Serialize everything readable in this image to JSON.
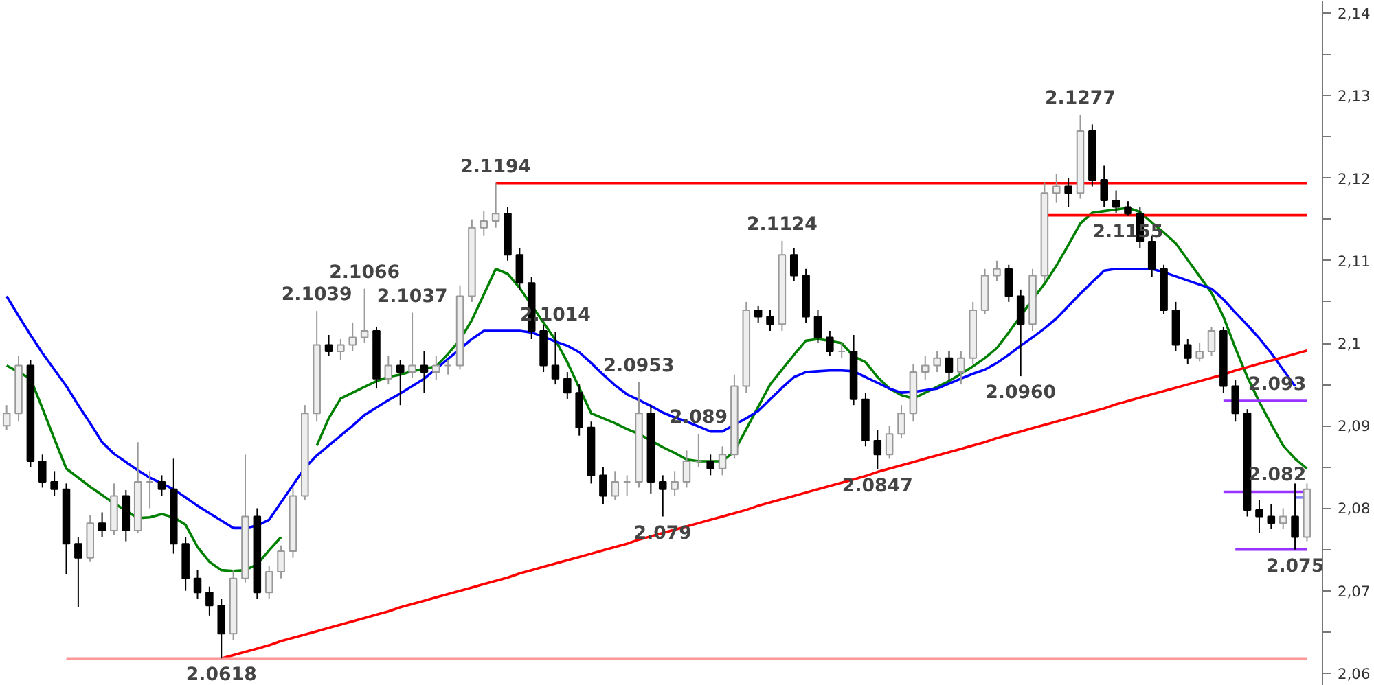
{
  "chart_data": {
    "type": "candlestick",
    "tick_labels": "y",
    "ylim": [
      2.0585,
      2.1415
    ],
    "yticks": [
      {
        "value": 2.06,
        "label": "2,06"
      },
      {
        "value": 2.065,
        "label": null
      },
      {
        "value": 2.07,
        "label": "2,07"
      },
      {
        "value": 2.075,
        "label": null
      },
      {
        "value": 2.08,
        "label": "2,08"
      },
      {
        "value": 2.085,
        "label": null
      },
      {
        "value": 2.09,
        "label": "2,09"
      },
      {
        "value": 2.095,
        "label": null
      },
      {
        "value": 2.1,
        "label": "2,1"
      },
      {
        "value": 2.105,
        "label": null
      },
      {
        "value": 2.11,
        "label": "2,11"
      },
      {
        "value": 2.115,
        "label": null
      },
      {
        "value": 2.12,
        "label": "2,12"
      },
      {
        "value": 2.125,
        "label": null
      },
      {
        "value": 2.13,
        "label": "2,13"
      },
      {
        "value": 2.135,
        "label": null
      },
      {
        "value": 2.14,
        "label": "2,14"
      }
    ],
    "categories": [
      null,
      null,
      null,
      null,
      null,
      null,
      null,
      null,
      null,
      null,
      null,
      null,
      null,
      null,
      null,
      null,
      null,
      null,
      null,
      null,
      null,
      null,
      null,
      null,
      null,
      null,
      null,
      null,
      null,
      null,
      null,
      null,
      null,
      null,
      null,
      null,
      null,
      null,
      null,
      null,
      null,
      null,
      null,
      null,
      null,
      null,
      null,
      null,
      null,
      null,
      null,
      null,
      null,
      null,
      null,
      null,
      null,
      null,
      null,
      null,
      null,
      null,
      null,
      null,
      null,
      null,
      null,
      null,
      null,
      null,
      null,
      null,
      null,
      null,
      null,
      null,
      null,
      null,
      null,
      null,
      null,
      null,
      null,
      null,
      null,
      null,
      null,
      null,
      null,
      null,
      null,
      null,
      null,
      null,
      null,
      null,
      null,
      null,
      null,
      null,
      null,
      null,
      null,
      null,
      null,
      null,
      null,
      null,
      null,
      null
    ],
    "ohlc": [
      [
        2.09,
        2.0925,
        2.0895,
        2.0915
      ],
      [
        2.0915,
        2.0985,
        2.0905,
        2.0973
      ],
      [
        2.0973,
        2.098,
        2.085,
        2.0857
      ],
      [
        2.0857,
        2.0865,
        2.0825,
        2.0832
      ],
      [
        2.0832,
        2.0845,
        2.0815,
        2.0823
      ],
      [
        2.0823,
        2.083,
        2.072,
        2.0757
      ],
      [
        2.0757,
        2.0765,
        2.068,
        2.074
      ],
      [
        2.074,
        2.0792,
        2.0735,
        2.0782
      ],
      [
        2.0782,
        2.0795,
        2.0765,
        2.0773
      ],
      [
        2.0773,
        2.083,
        2.0768,
        2.0815
      ],
      [
        2.0815,
        2.0822,
        2.076,
        2.0773
      ],
      [
        2.0773,
        2.088,
        2.077,
        2.0832
      ],
      [
        2.0832,
        2.0845,
        2.08,
        2.0832
      ],
      [
        2.0832,
        2.084,
        2.0815,
        2.0823
      ],
      [
        2.0823,
        2.086,
        2.0745,
        2.0757
      ],
      [
        2.0757,
        2.0765,
        2.07,
        2.0715
      ],
      [
        2.0715,
        2.0725,
        2.069,
        2.0698
      ],
      [
        2.0698,
        2.0705,
        2.067,
        2.0682
      ],
      [
        2.0682,
        2.069,
        2.0618,
        2.0648
      ],
      [
        2.0648,
        2.0725,
        2.064,
        2.0715
      ],
      [
        2.0715,
        2.0865,
        2.071,
        2.079
      ],
      [
        2.079,
        2.08,
        2.069,
        2.0698
      ],
      [
        2.0698,
        2.073,
        2.069,
        2.0723
      ],
      [
        2.0723,
        2.0755,
        2.0715,
        2.0748
      ],
      [
        2.0748,
        2.0825,
        2.074,
        2.0815
      ],
      [
        2.0815,
        2.0925,
        2.081,
        2.0915
      ],
      [
        2.0915,
        2.1039,
        2.0905,
        2.0998
      ],
      [
        2.0998,
        2.101,
        2.0985,
        2.099
      ],
      [
        2.099,
        2.1005,
        2.098,
        2.0998
      ],
      [
        2.0998,
        2.1025,
        2.099,
        2.1007
      ],
      [
        2.1007,
        2.1066,
        2.1,
        2.1015
      ],
      [
        2.1015,
        2.102,
        2.0945,
        2.0957
      ],
      [
        2.0957,
        2.0985,
        2.095,
        2.0973
      ],
      [
        2.0973,
        2.098,
        2.0925,
        2.0965
      ],
      [
        2.0965,
        2.1037,
        2.0958,
        2.0973
      ],
      [
        2.0973,
        2.099,
        2.094,
        2.0965
      ],
      [
        2.0965,
        2.0985,
        2.0955,
        2.0973
      ],
      [
        2.0973,
        2.098,
        2.0962,
        2.0973
      ],
      [
        2.0973,
        2.107,
        2.0968,
        2.1057
      ],
      [
        2.1057,
        2.115,
        2.105,
        2.114
      ],
      [
        2.114,
        2.116,
        2.113,
        2.1148
      ],
      [
        2.1148,
        2.1194,
        2.114,
        2.1157
      ],
      [
        2.1157,
        2.1165,
        2.11,
        2.1107
      ],
      [
        2.1107,
        2.1115,
        2.1065,
        2.1073
      ],
      [
        2.1073,
        2.108,
        2.1005,
        2.1015
      ],
      [
        2.1015,
        2.1022,
        2.0965,
        2.0973
      ],
      [
        2.0973,
        2.1014,
        2.095,
        2.0957
      ],
      [
        2.0957,
        2.0965,
        2.0932,
        2.094
      ],
      [
        2.094,
        2.095,
        2.0888,
        2.0898
      ],
      [
        2.0898,
        2.0905,
        2.083,
        2.084
      ],
      [
        2.084,
        2.085,
        2.0805,
        2.0815
      ],
      [
        2.0815,
        2.0845,
        2.081,
        2.0832
      ],
      [
        2.0832,
        2.084,
        2.0815,
        2.0832
      ],
      [
        2.0832,
        2.0953,
        2.0825,
        2.0915
      ],
      [
        2.0915,
        2.0925,
        2.0818,
        2.0832
      ],
      [
        2.0832,
        2.084,
        2.079,
        2.0823
      ],
      [
        2.0823,
        2.0845,
        2.0815,
        2.0832
      ],
      [
        2.0832,
        2.087,
        2.0825,
        2.0857
      ],
      [
        2.0857,
        2.089,
        2.085,
        2.0857
      ],
      [
        2.0857,
        2.0865,
        2.084,
        2.0848
      ],
      [
        2.0848,
        2.0875,
        2.084,
        2.0865
      ],
      [
        2.0865,
        2.0962,
        2.086,
        2.0948
      ],
      [
        2.0948,
        2.105,
        2.094,
        2.104
      ],
      [
        2.104,
        2.1045,
        2.1025,
        2.1032
      ],
      [
        2.1032,
        2.104,
        2.1015,
        2.1023
      ],
      [
        2.1023,
        2.1124,
        2.1015,
        2.1107
      ],
      [
        2.1107,
        2.1115,
        2.1075,
        2.1082
      ],
      [
        2.1082,
        2.109,
        2.1025,
        2.1032
      ],
      [
        2.1032,
        2.104,
        2.1,
        2.1007
      ],
      [
        2.1007,
        2.1015,
        2.0985,
        2.099
      ],
      [
        2.099,
        2.1,
        2.0982,
        2.099
      ],
      [
        2.099,
        2.101,
        2.0925,
        2.0932
      ],
      [
        2.0932,
        2.094,
        2.0875,
        2.0882
      ],
      [
        2.0882,
        2.0895,
        2.0847,
        2.0865
      ],
      [
        2.0865,
        2.09,
        2.086,
        2.089
      ],
      [
        2.089,
        2.0925,
        2.0885,
        2.0915
      ],
      [
        2.0915,
        2.0975,
        2.0905,
        2.0965
      ],
      [
        2.0965,
        2.0985,
        2.0955,
        2.0973
      ],
      [
        2.0973,
        2.099,
        2.0965,
        2.0982
      ],
      [
        2.0982,
        2.099,
        2.0955,
        2.0965
      ],
      [
        2.0965,
        2.099,
        2.095,
        2.0982
      ],
      [
        2.0982,
        2.105,
        2.0975,
        2.104
      ],
      [
        2.104,
        2.109,
        2.1035,
        2.1082
      ],
      [
        2.1082,
        2.11,
        2.1075,
        2.109
      ],
      [
        2.109,
        2.1095,
        2.105,
        2.1057
      ],
      [
        2.1057,
        2.1065,
        2.096,
        2.1023
      ],
      [
        2.1023,
        2.109,
        2.1015,
        2.1082
      ],
      [
        2.1082,
        2.1195,
        2.1075,
        2.1182
      ],
      [
        2.1182,
        2.1205,
        2.117,
        2.119
      ],
      [
        2.119,
        2.12,
        2.1165,
        2.1182
      ],
      [
        2.1182,
        2.1277,
        2.1175,
        2.1257
      ],
      [
        2.1257,
        2.1265,
        2.119,
        2.1198
      ],
      [
        2.1198,
        2.1215,
        2.1165,
        2.1173
      ],
      [
        2.1173,
        2.1185,
        2.1158,
        2.1165
      ],
      [
        2.1165,
        2.1172,
        2.1155,
        2.1157
      ],
      [
        2.1157,
        2.1165,
        2.1115,
        2.1123
      ],
      [
        2.1123,
        2.113,
        2.108,
        2.109
      ],
      [
        2.109,
        2.1095,
        2.1035,
        2.104
      ],
      [
        2.104,
        2.105,
        2.099,
        2.0998
      ],
      [
        2.0998,
        2.1005,
        2.0975,
        2.0982
      ],
      [
        2.0982,
        2.1,
        2.0978,
        2.099
      ],
      [
        2.099,
        2.102,
        2.0985,
        2.1015
      ],
      [
        2.1015,
        2.102,
        2.094,
        2.0948
      ],
      [
        2.0948,
        2.0955,
        2.0905,
        2.0915
      ],
      [
        2.0915,
        2.092,
        2.079,
        2.0798
      ],
      [
        2.0798,
        2.081,
        2.077,
        2.079
      ],
      [
        2.079,
        2.0805,
        2.0775,
        2.0782
      ],
      [
        2.0782,
        2.08,
        2.0775,
        2.079
      ],
      [
        2.079,
        2.083,
        2.075,
        2.0765
      ],
      [
        2.0765,
        2.083,
        2.076,
        2.0823
      ]
    ],
    "series": [
      {
        "type": "line",
        "color": "#008000",
        "values": [
          2.0973,
          2.0965,
          2.0957,
          2.0921,
          2.0884,
          2.0848,
          2.0837,
          2.0826,
          2.0816,
          2.0806,
          2.0797,
          2.0788,
          2.0789,
          2.0793,
          2.0789,
          2.078,
          2.0753,
          2.0735,
          2.0725,
          2.0724,
          2.0725,
          2.0732,
          2.0749,
          2.0765,
          null,
          null,
          2.0876,
          2.0909,
          2.0933,
          2.094,
          2.0947,
          2.0954,
          2.0959,
          2.0962,
          2.0966,
          2.0969,
          2.0972,
          2.0987,
          2.1004,
          2.1028,
          2.1059,
          2.109,
          2.1084,
          2.1067,
          2.1046,
          2.1025,
          2.1004,
          2.0977,
          2.0946,
          2.0915,
          2.0909,
          2.0903,
          2.0896,
          2.089,
          2.0882,
          2.0874,
          2.0867,
          2.0859,
          2.0857,
          2.0857,
          2.0857,
          2.0869,
          2.0896,
          2.0923,
          2.095,
          2.0968,
          2.0986,
          2.1003,
          2.1005,
          2.1003,
          2.1,
          2.0984,
          2.0977,
          2.0959,
          2.0945,
          2.0937,
          2.0933,
          2.094,
          2.0947,
          2.0954,
          2.0963,
          2.0972,
          2.0982,
          2.0994,
          2.1013,
          2.1033,
          2.1053,
          2.1072,
          2.1094,
          2.1119,
          2.1145,
          2.1158,
          2.116,
          2.1162,
          2.1164,
          2.1159,
          2.1146,
          2.1134,
          2.1121,
          2.1101,
          2.1081,
          2.1061,
          2.1032,
          2.0994,
          2.0959,
          2.0929,
          2.0902,
          2.0876,
          2.086,
          2.0848
        ]
      },
      {
        "type": "line",
        "color": "#0000ff",
        "values": [
          2.1057,
          2.1033,
          2.101,
          2.0988,
          2.0968,
          2.0948,
          2.0925,
          2.0903,
          2.088,
          2.0866,
          2.0856,
          2.0846,
          2.0837,
          2.083,
          2.0823,
          2.0813,
          2.0803,
          2.0794,
          2.0785,
          2.0776,
          2.0776,
          2.0779,
          2.0786,
          2.0807,
          2.0828,
          2.0849,
          2.0864,
          2.0876,
          2.0888,
          2.09,
          2.0913,
          2.0922,
          2.0931,
          2.0939,
          2.0948,
          2.0957,
          2.0969,
          2.0981,
          2.0993,
          2.1005,
          2.1015,
          2.1015,
          2.1015,
          2.1015,
          2.1013,
          2.1008,
          2.1002,
          2.0997,
          2.0989,
          2.0976,
          2.0962,
          2.0949,
          2.0938,
          2.0931,
          2.0924,
          2.0916,
          2.091,
          2.0905,
          2.0899,
          2.0893,
          2.0893,
          2.0901,
          2.0909,
          2.0918,
          2.0932,
          2.0946,
          2.0959,
          2.0965,
          2.0966,
          2.0967,
          2.0967,
          2.0966,
          2.0959,
          2.0952,
          2.0945,
          2.094,
          2.0941,
          2.0943,
          2.0945,
          2.0951,
          2.0957,
          2.0963,
          2.0968,
          2.0976,
          2.0986,
          2.0997,
          2.1007,
          2.1018,
          2.103,
          2.1045,
          2.106,
          2.1074,
          2.1088,
          2.109,
          2.109,
          2.109,
          2.109,
          2.1086,
          2.1081,
          2.1076,
          2.1071,
          2.1066,
          2.1053,
          2.1037,
          2.1022,
          2.1006,
          2.0988,
          2.0968,
          2.0948,
          null
        ]
      },
      {
        "type": "line",
        "color": "#ff0000",
        "values": [
          null,
          null,
          null,
          null,
          null,
          null,
          null,
          null,
          null,
          null,
          null,
          null,
          null,
          null,
          null,
          null,
          null,
          null,
          null,
          null,
          null,
          null,
          null,
          null,
          null,
          null,
          null,
          null,
          null,
          null,
          null,
          null,
          null,
          null,
          null,
          null,
          null,
          null,
          null,
          null,
          null,
          2.1194,
          2.1194,
          2.1194,
          2.1194,
          2.1194,
          2.1194,
          2.1194,
          2.1194,
          2.1194,
          2.1194,
          2.1194,
          2.1194,
          2.1194,
          2.1194,
          2.1194,
          2.1194,
          2.1194,
          2.1194,
          2.1194,
          2.1194,
          2.1194,
          2.1194,
          2.1194,
          2.1194,
          2.1194,
          2.1194,
          2.1194,
          2.1194,
          2.1194,
          2.1194,
          2.1194,
          2.1194,
          2.1194,
          2.1194,
          2.1194,
          2.1194,
          2.1194,
          2.1194,
          2.1194,
          2.1194,
          2.1194,
          2.1194,
          2.1194,
          2.1194,
          2.1194,
          2.1194,
          2.1194,
          2.1194,
          2.1194,
          2.1194,
          2.1194,
          2.1194,
          2.1194,
          2.1194,
          2.1194,
          2.1194,
          2.1194,
          2.1194,
          2.1194,
          2.1194,
          2.1194,
          2.1194,
          2.1194,
          2.1194,
          2.1194,
          2.1194,
          2.1194,
          2.1194,
          2.1194
        ]
      },
      {
        "type": "line",
        "color": "#ff0000",
        "values": [
          null,
          null,
          null,
          null,
          null,
          null,
          null,
          null,
          null,
          null,
          null,
          null,
          null,
          null,
          null,
          null,
          null,
          null,
          null,
          null,
          null,
          null,
          null,
          null,
          null,
          null,
          null,
          null,
          null,
          null,
          null,
          null,
          null,
          null,
          null,
          null,
          null,
          null,
          null,
          null,
          null,
          null,
          null,
          null,
          null,
          null,
          null,
          null,
          null,
          null,
          null,
          null,
          null,
          null,
          null,
          null,
          null,
          null,
          null,
          null,
          null,
          null,
          null,
          null,
          null,
          null,
          null,
          null,
          null,
          null,
          null,
          null,
          null,
          null,
          null,
          null,
          null,
          null,
          null,
          null,
          null,
          null,
          null,
          null,
          null,
          null,
          null,
          2.1155,
          2.1155,
          2.1155,
          2.1155,
          2.1155,
          2.1155,
          2.1155,
          2.1155,
          2.1155,
          2.1155,
          2.1155,
          2.1155,
          2.1155,
          2.1155,
          2.1155,
          2.1155,
          2.1155,
          2.1155,
          2.1155,
          2.1155,
          2.1155,
          2.1155,
          2.1155
        ]
      },
      {
        "type": "line",
        "color": "#ff0000",
        "values": [
          null,
          null,
          null,
          null,
          null,
          null,
          null,
          null,
          null,
          null,
          null,
          null,
          null,
          null,
          null,
          null,
          null,
          null,
          2.0618,
          2.0622,
          2.0626,
          2.063,
          2.0634,
          2.0639,
          2.0643,
          2.0647,
          2.0651,
          2.0655,
          2.0659,
          2.0663,
          2.0667,
          2.0671,
          2.0675,
          2.068,
          2.0684,
          2.0688,
          2.0692,
          2.0696,
          2.07,
          2.0704,
          2.0708,
          2.0712,
          2.0716,
          2.0721,
          2.0725,
          2.0729,
          2.0733,
          2.0737,
          2.0741,
          2.0745,
          2.0749,
          2.0753,
          2.0757,
          2.0762,
          2.0766,
          2.077,
          2.0774,
          2.0778,
          2.0782,
          2.0786,
          2.079,
          2.0794,
          2.0798,
          2.0803,
          2.0807,
          2.0811,
          2.0815,
          2.0819,
          2.0823,
          2.0827,
          2.0831,
          2.0835,
          2.0839,
          2.0844,
          2.0848,
          2.0852,
          2.0856,
          2.086,
          2.0864,
          2.0868,
          2.0872,
          2.0876,
          2.088,
          2.0885,
          2.0889,
          2.0893,
          2.0897,
          2.0901,
          2.0905,
          2.0909,
          2.0913,
          2.0917,
          2.0921,
          2.0926,
          2.093,
          2.0934,
          2.0938,
          2.0942,
          2.0946,
          2.095,
          2.0954,
          2.0958,
          2.0962,
          2.0967,
          2.0971,
          2.0975,
          2.0979,
          2.0983,
          2.0987,
          2.0991
        ]
      },
      {
        "type": "line",
        "color": "#ff9999",
        "values": [
          null,
          null,
          null,
          null,
          null,
          2.0618,
          2.0618,
          2.0618,
          2.0618,
          2.0618,
          2.0618,
          2.0618,
          2.0618,
          2.0618,
          2.0618,
          2.0618,
          2.0618,
          2.0618,
          2.0618,
          2.0618,
          2.0618,
          2.0618,
          2.0618,
          2.0618,
          2.0618,
          2.0618,
          2.0618,
          2.0618,
          2.0618,
          2.0618,
          2.0618,
          2.0618,
          2.0618,
          2.0618,
          2.0618,
          2.0618,
          2.0618,
          2.0618,
          2.0618,
          2.0618,
          2.0618,
          2.0618,
          2.0618,
          2.0618,
          2.0618,
          2.0618,
          2.0618,
          2.0618,
          2.0618,
          2.0618,
          2.0618,
          2.0618,
          2.0618,
          2.0618,
          2.0618,
          2.0618,
          2.0618,
          2.0618,
          2.0618,
          2.0618,
          2.0618,
          2.0618,
          2.0618,
          2.0618,
          2.0618,
          2.0618,
          2.0618,
          2.0618,
          2.0618,
          2.0618,
          2.0618,
          2.0618,
          2.0618,
          2.0618,
          2.0618,
          2.0618,
          2.0618,
          2.0618,
          2.0618,
          2.0618,
          2.0618,
          2.0618,
          2.0618,
          2.0618,
          2.0618,
          2.0618,
          2.0618,
          2.0618,
          2.0618,
          2.0618,
          2.0618,
          2.0618,
          2.0618,
          2.0618,
          2.0618,
          2.0618,
          2.0618,
          2.0618,
          2.0618,
          2.0618,
          2.0618,
          2.0618,
          2.0618,
          2.0618,
          2.0618,
          2.0618,
          2.0618,
          2.0618,
          2.0618,
          2.0618
        ]
      },
      {
        "type": "line",
        "color": "#9933ff",
        "values": [
          null,
          null,
          null,
          null,
          null,
          null,
          null,
          null,
          null,
          null,
          null,
          null,
          null,
          null,
          null,
          null,
          null,
          null,
          null,
          null,
          null,
          null,
          null,
          null,
          null,
          null,
          null,
          null,
          null,
          null,
          null,
          null,
          null,
          null,
          null,
          null,
          null,
          null,
          null,
          null,
          null,
          null,
          null,
          null,
          null,
          null,
          null,
          null,
          null,
          null,
          null,
          null,
          null,
          null,
          null,
          null,
          null,
          null,
          null,
          null,
          null,
          null,
          null,
          null,
          null,
          null,
          null,
          null,
          null,
          null,
          null,
          null,
          null,
          null,
          null,
          null,
          null,
          null,
          null,
          null,
          null,
          null,
          null,
          null,
          null,
          null,
          null,
          null,
          null,
          null,
          null,
          null,
          null,
          null,
          null,
          null,
          null,
          null,
          null,
          null,
          null,
          null,
          2.093,
          2.093,
          2.093,
          2.093,
          2.093,
          2.093,
          2.093,
          2.093
        ]
      },
      {
        "type": "line",
        "color": "#9933ff",
        "values": [
          null,
          null,
          null,
          null,
          null,
          null,
          null,
          null,
          null,
          null,
          null,
          null,
          null,
          null,
          null,
          null,
          null,
          null,
          null,
          null,
          null,
          null,
          null,
          null,
          null,
          null,
          null,
          null,
          null,
          null,
          null,
          null,
          null,
          null,
          null,
          null,
          null,
          null,
          null,
          null,
          null,
          null,
          null,
          null,
          null,
          null,
          null,
          null,
          null,
          null,
          null,
          null,
          null,
          null,
          null,
          null,
          null,
          null,
          null,
          null,
          null,
          null,
          null,
          null,
          null,
          null,
          null,
          null,
          null,
          null,
          null,
          null,
          null,
          null,
          null,
          null,
          null,
          null,
          null,
          null,
          null,
          null,
          null,
          null,
          null,
          null,
          null,
          null,
          null,
          null,
          null,
          null,
          null,
          null,
          null,
          null,
          null,
          null,
          null,
          null,
          null,
          null,
          2.082,
          2.082,
          2.082,
          2.082,
          2.082,
          2.082,
          2.082,
          2.082
        ]
      },
      {
        "type": "line",
        "color": "#9933ff",
        "values": [
          null,
          null,
          null,
          null,
          null,
          null,
          null,
          null,
          null,
          null,
          null,
          null,
          null,
          null,
          null,
          null,
          null,
          null,
          null,
          null,
          null,
          null,
          null,
          null,
          null,
          null,
          null,
          null,
          null,
          null,
          null,
          null,
          null,
          null,
          null,
          null,
          null,
          null,
          null,
          null,
          null,
          null,
          null,
          null,
          null,
          null,
          null,
          null,
          null,
          null,
          null,
          null,
          null,
          null,
          null,
          null,
          null,
          null,
          null,
          null,
          null,
          null,
          null,
          null,
          null,
          null,
          null,
          null,
          null,
          null,
          null,
          null,
          null,
          null,
          null,
          null,
          null,
          null,
          null,
          null,
          null,
          null,
          null,
          null,
          null,
          null,
          null,
          null,
          null,
          null,
          null,
          null,
          null,
          null,
          null,
          null,
          null,
          null,
          null,
          null,
          null,
          null,
          null,
          2.075,
          2.075,
          2.075,
          2.075,
          2.075,
          2.075,
          2.075
        ]
      },
      {
        "type": "line",
        "color": "#8080ff",
        "values": [
          null,
          null,
          null,
          null,
          null,
          null,
          null,
          null,
          null,
          null,
          null,
          null,
          null,
          null,
          null,
          null,
          null,
          null,
          null,
          null,
          null,
          null,
          null,
          null,
          null,
          null,
          null,
          null,
          null,
          null,
          null,
          null,
          null,
          null,
          null,
          null,
          null,
          null,
          null,
          null,
          null,
          null,
          null,
          null,
          null,
          null,
          null,
          null,
          null,
          null,
          null,
          null,
          null,
          null,
          null,
          null,
          null,
          null,
          null,
          null,
          null,
          null,
          null,
          null,
          null,
          null,
          null,
          null,
          null,
          null,
          null,
          null,
          null,
          null,
          null,
          null,
          null,
          null,
          null,
          null,
          null,
          null,
          null,
          null,
          null,
          null,
          null,
          null,
          null,
          null,
          null,
          null,
          null,
          null,
          null,
          null,
          null,
          null,
          null,
          null,
          null,
          null,
          null,
          null,
          null,
          null,
          null,
          null,
          2.0813,
          2.0813
        ]
      }
    ],
    "annotations": [
      {
        "text": "2.0618",
        "y": 2.0618
      },
      {
        "text": "2.1039",
        "y": 2.1039
      },
      {
        "text": "2.1066",
        "y": 2.1066
      },
      {
        "text": "2.1037",
        "y": 2.1037
      },
      {
        "text": "2.1194",
        "y": 2.1194
      },
      {
        "text": "2.1014",
        "y": 2.1014
      },
      {
        "text": "2.0953",
        "y": 2.0953
      },
      {
        "text": "2.089",
        "y": 2.089
      },
      {
        "text": "2.079",
        "y": 2.079
      },
      {
        "text": "2.1124",
        "y": 2.1124
      },
      {
        "text": "2.0847",
        "y": 2.0847
      },
      {
        "text": "2.0960",
        "y": 2.096
      },
      {
        "text": "2.1277",
        "y": 2.1277
      },
      {
        "text": "2.1155",
        "y": 2.1155
      },
      {
        "text": "2.093",
        "y": 2.093
      },
      {
        "text": "2.082",
        "y": 2.082
      },
      {
        "text": "2.075",
        "y": 2.075
      }
    ]
  }
}
